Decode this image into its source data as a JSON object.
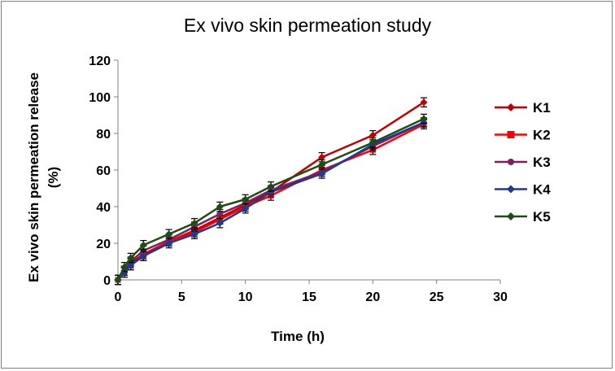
{
  "chart_data": {
    "type": "line",
    "title": "Ex vivo skin permeation study",
    "xlabel": "Time (h)",
    "ylabel_lines": [
      "Ex vivo skin permeation release",
      "(%)"
    ],
    "xlim": [
      0,
      30
    ],
    "ylim": [
      0,
      120
    ],
    "x_ticks": [
      0,
      5,
      10,
      15,
      20,
      25,
      30
    ],
    "y_ticks": [
      0,
      20,
      40,
      60,
      80,
      100,
      120
    ],
    "grid": false,
    "legend_position": "right",
    "x": [
      0,
      0.5,
      1,
      2,
      4,
      6,
      8,
      10,
      12,
      16,
      20,
      24
    ],
    "series": [
      {
        "name": "K1",
        "color": "#c00000",
        "marker": "diamond",
        "values": [
          0,
          5,
          9,
          14,
          21,
          27,
          34,
          41,
          48,
          67,
          79,
          97
        ]
      },
      {
        "name": "K2",
        "color": "#ff0000",
        "marker": "square",
        "values": [
          0,
          4,
          8,
          13,
          21,
          26,
          33,
          40,
          46,
          60,
          71,
          85
        ]
      },
      {
        "name": "K3",
        "color": "#7f1f5f",
        "marker": "circle",
        "values": [
          0,
          5,
          10,
          16,
          22,
          29,
          36,
          42,
          49,
          59,
          73,
          86
        ]
      },
      {
        "name": "K4",
        "color": "#1f3a8f",
        "marker": "diamond",
        "values": [
          0,
          4,
          8,
          13,
          20,
          25,
          31,
          39,
          48,
          58,
          74,
          86
        ]
      },
      {
        "name": "K5",
        "color": "#1e4d14",
        "marker": "diamond",
        "values": [
          0,
          7,
          12,
          19,
          25,
          31,
          40,
          44,
          51,
          63,
          75,
          88
        ]
      }
    ],
    "error_bar": 2.5,
    "error_bar_color": "#000000"
  }
}
